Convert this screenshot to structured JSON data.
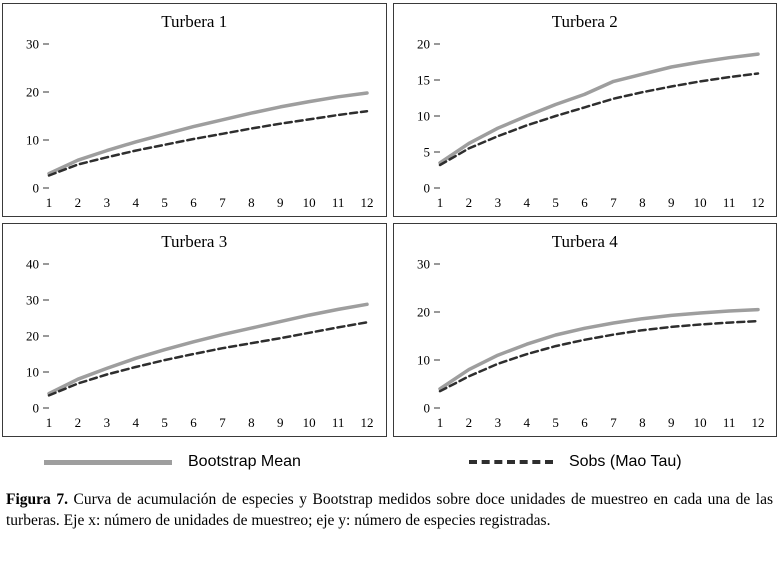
{
  "chart_data": [
    {
      "type": "line",
      "title": "Turbera 1",
      "x": [
        1,
        2,
        3,
        4,
        5,
        6,
        7,
        8,
        9,
        10,
        11,
        12
      ],
      "xlabel": "",
      "ylabel": "",
      "ylim": [
        0,
        30
      ],
      "yticks": [
        0,
        10,
        20,
        30
      ],
      "grid": false,
      "series": [
        {
          "name": "Bootstrap Mean",
          "color": "#9e9e9e",
          "width": 3.5,
          "dash": "",
          "values": [
            3.0,
            5.8,
            7.8,
            9.6,
            11.2,
            12.8,
            14.2,
            15.6,
            16.9,
            18.0,
            19.0,
            19.8
          ]
        },
        {
          "name": "Sobs (Mao Tau)",
          "color": "#2e2e2e",
          "width": 2.5,
          "dash": "7 4",
          "values": [
            2.6,
            4.9,
            6.4,
            7.8,
            9.0,
            10.2,
            11.3,
            12.4,
            13.4,
            14.3,
            15.2,
            16.0
          ]
        }
      ]
    },
    {
      "type": "line",
      "title": "Turbera 2",
      "x": [
        1,
        2,
        3,
        4,
        5,
        6,
        7,
        8,
        9,
        10,
        11,
        12
      ],
      "xlabel": "",
      "ylabel": "",
      "ylim": [
        0,
        20
      ],
      "yticks": [
        0,
        5,
        10,
        15,
        20
      ],
      "grid": false,
      "series": [
        {
          "name": "Bootstrap Mean",
          "color": "#9e9e9e",
          "width": 3.5,
          "dash": "",
          "values": [
            3.5,
            6.2,
            8.3,
            10.0,
            11.6,
            13.0,
            14.8,
            15.8,
            16.8,
            17.5,
            18.1,
            18.6
          ]
        },
        {
          "name": "Sobs (Mao Tau)",
          "color": "#2e2e2e",
          "width": 2.5,
          "dash": "7 4",
          "values": [
            3.2,
            5.5,
            7.2,
            8.7,
            10.0,
            11.2,
            12.4,
            13.3,
            14.1,
            14.8,
            15.4,
            15.9
          ]
        }
      ]
    },
    {
      "type": "line",
      "title": "Turbera 3",
      "x": [
        1,
        2,
        3,
        4,
        5,
        6,
        7,
        8,
        9,
        10,
        11,
        12
      ],
      "xlabel": "",
      "ylabel": "",
      "ylim": [
        0,
        40
      ],
      "yticks": [
        0,
        10,
        20,
        30,
        40
      ],
      "grid": false,
      "series": [
        {
          "name": "Bootstrap Mean",
          "color": "#9e9e9e",
          "width": 3.5,
          "dash": "",
          "values": [
            4.0,
            8.0,
            11.0,
            13.8,
            16.2,
            18.4,
            20.4,
            22.2,
            24.0,
            25.8,
            27.4,
            28.8
          ]
        },
        {
          "name": "Sobs (Mao Tau)",
          "color": "#2e2e2e",
          "width": 2.5,
          "dash": "7 4",
          "values": [
            3.5,
            6.8,
            9.3,
            11.4,
            13.3,
            15.0,
            16.6,
            18.0,
            19.4,
            20.9,
            22.4,
            23.8
          ]
        }
      ]
    },
    {
      "type": "line",
      "title": "Turbera 4",
      "x": [
        1,
        2,
        3,
        4,
        5,
        6,
        7,
        8,
        9,
        10,
        11,
        12
      ],
      "xlabel": "",
      "ylabel": "",
      "ylim": [
        0,
        30
      ],
      "yticks": [
        0,
        10,
        20,
        30
      ],
      "grid": false,
      "series": [
        {
          "name": "Bootstrap Mean",
          "color": "#9e9e9e",
          "width": 3.5,
          "dash": "",
          "values": [
            4.0,
            8.0,
            11.0,
            13.3,
            15.2,
            16.6,
            17.7,
            18.6,
            19.3,
            19.8,
            20.2,
            20.5
          ]
        },
        {
          "name": "Sobs (Mao Tau)",
          "color": "#2e2e2e",
          "width": 2.5,
          "dash": "7 4",
          "values": [
            3.5,
            6.6,
            9.2,
            11.2,
            12.9,
            14.2,
            15.3,
            16.2,
            16.9,
            17.4,
            17.8,
            18.1
          ]
        }
      ]
    }
  ],
  "legend": [
    {
      "label": "Bootstrap Mean",
      "style": "solid",
      "color": "#9e9e9e"
    },
    {
      "label": "Sobs (Mao Tau)",
      "style": "dashed",
      "color": "#2e2e2e"
    }
  ],
  "caption": {
    "label": "Figura 7.",
    "text": " Curva de acumulación de especies y Bootstrap medidos sobre doce unidades de muestreo en cada una de las turberas. Eje x: número de unidades de muestreo; eje y: número de especies registradas."
  }
}
